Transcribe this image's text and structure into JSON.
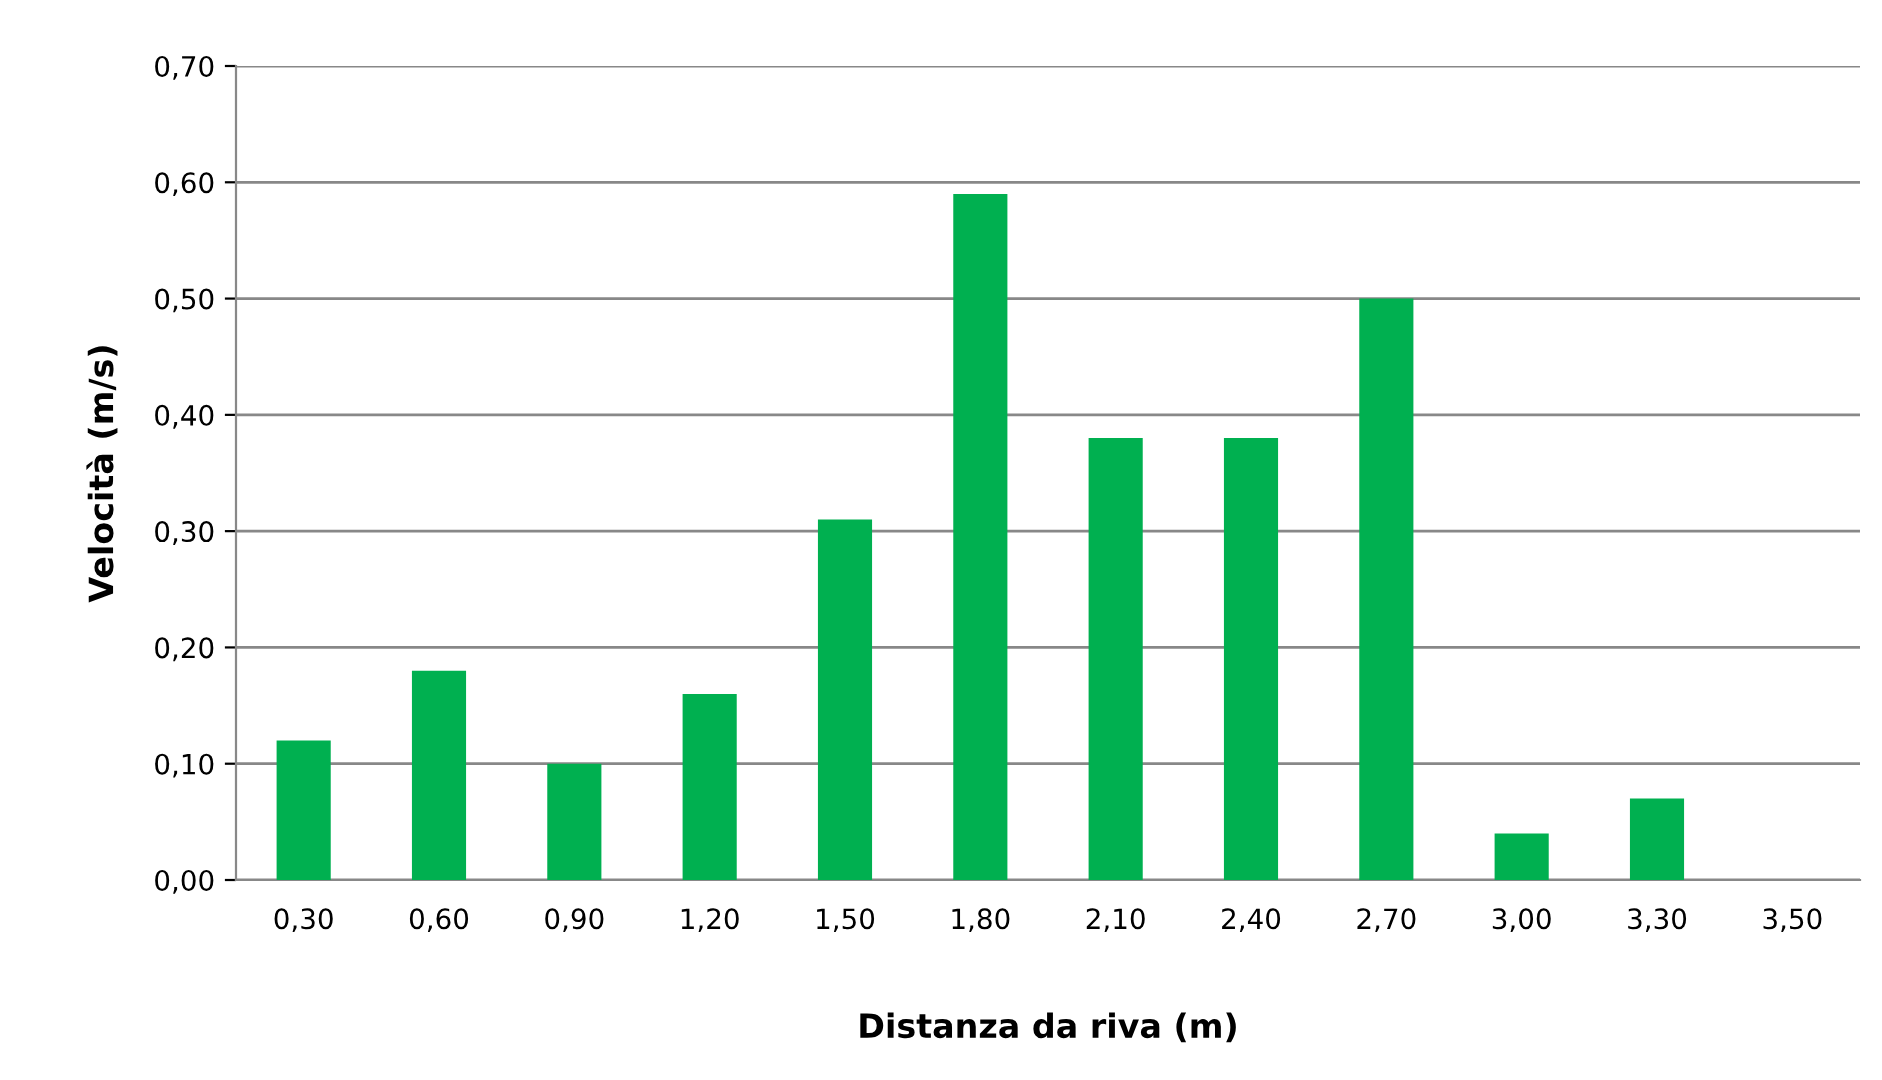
{
  "chart_data": {
    "type": "bar",
    "xlabel": "Distanza da riva (m)",
    "ylabel": "Velocità (m/s)",
    "categories": [
      "0,30",
      "0,60",
      "0,90",
      "1,20",
      "1,50",
      "1,80",
      "2,10",
      "2,40",
      "2,70",
      "3,00",
      "3,30",
      "3,50"
    ],
    "values": [
      0.12,
      0.18,
      0.1,
      0.16,
      0.31,
      0.59,
      0.38,
      0.38,
      0.5,
      0.04,
      0.07,
      null
    ],
    "color": "#00b050",
    "ylim": [
      0,
      0.7
    ],
    "yticks": [
      {
        "value": 0,
        "label": "0,00"
      },
      {
        "value": 0.1,
        "label": "0,10"
      },
      {
        "value": 0.2,
        "label": "0,20"
      },
      {
        "value": 0.3,
        "label": "0,30"
      },
      {
        "value": 0.4,
        "label": "0,40"
      },
      {
        "value": 0.5,
        "label": "0,50"
      },
      {
        "value": 0.6,
        "label": "0,60"
      },
      {
        "value": 0.7,
        "label": "0,70"
      }
    ],
    "grid": "y",
    "legend": false
  }
}
